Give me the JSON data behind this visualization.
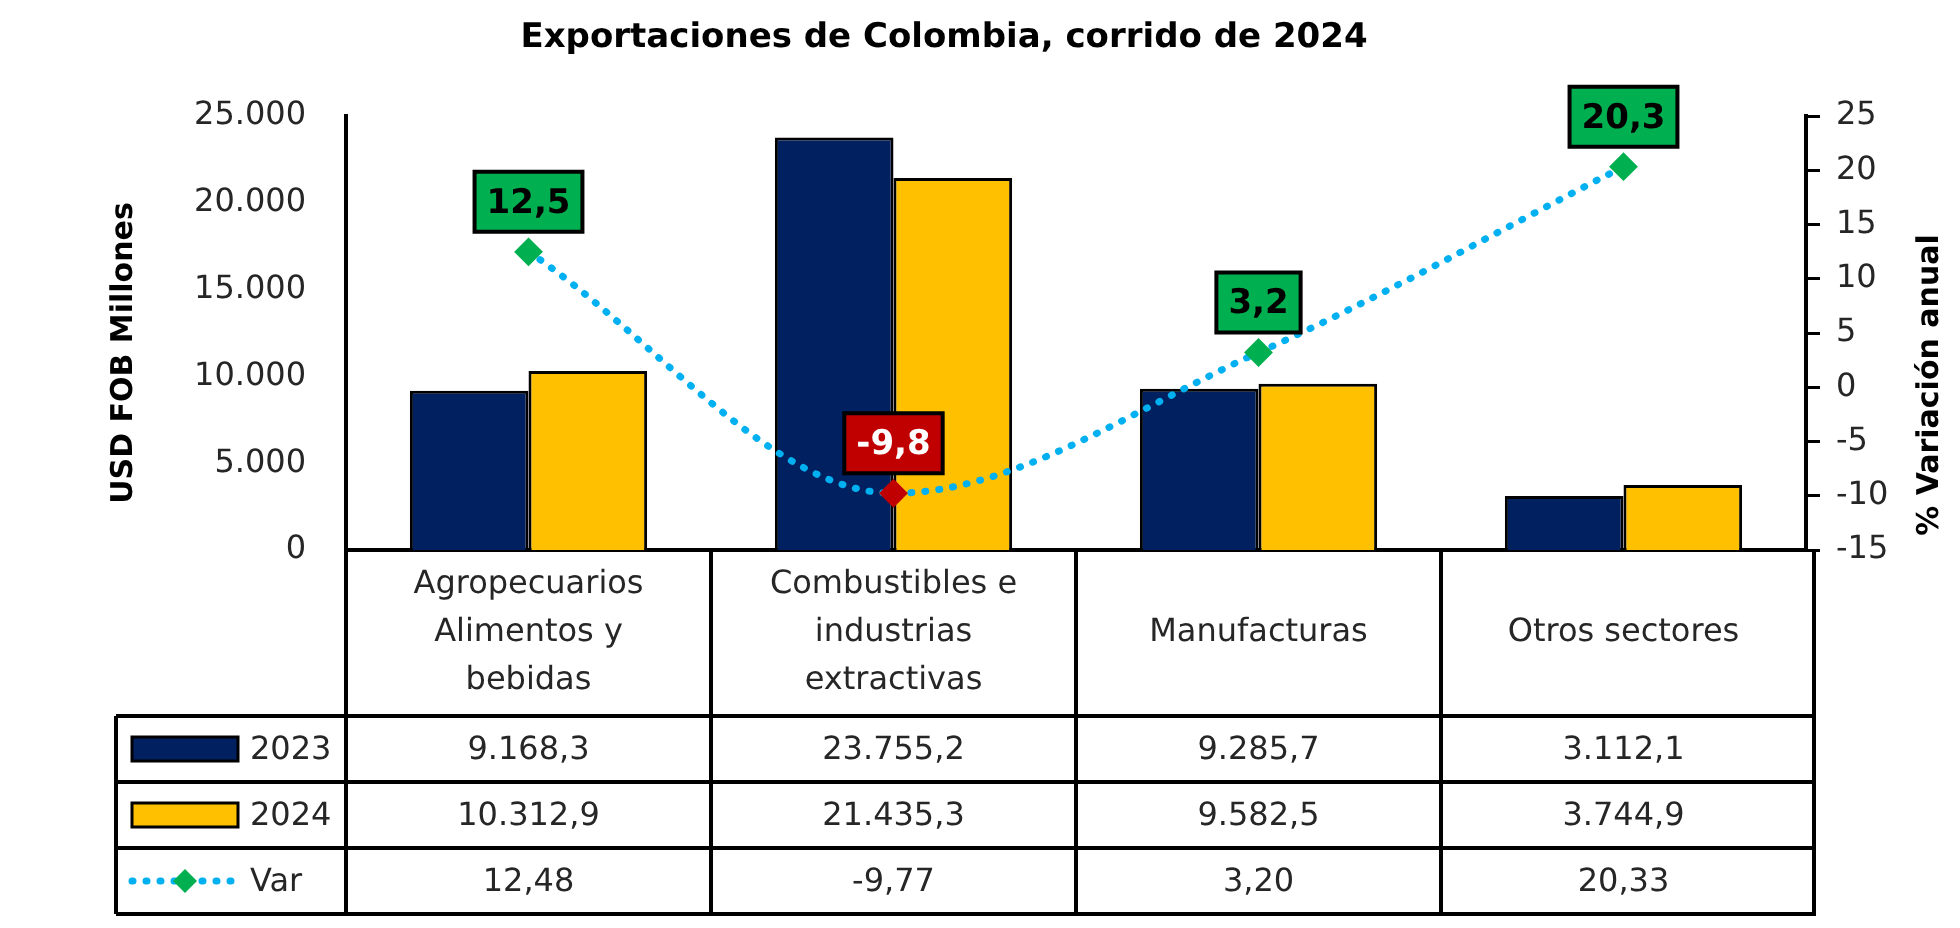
{
  "chart_data": {
    "type": "bar",
    "title": "Exportaciones de Colombia, corrido de 2024",
    "ylabel": "USD FOB Millones",
    "y2label": "% Variación anual",
    "categories": [
      "Agropecuarios Alimentos y bebidas",
      "Combustibles e industrias extractivas",
      "Manufacturas",
      "Otros sectores"
    ],
    "series": [
      {
        "name": "2023",
        "color": "#002060",
        "values": [
          9168.3,
          23755.2,
          9285.7,
          3112.1
        ],
        "value_labels": [
          "9.168,3",
          "23.755,2",
          "9.285,7",
          "3.112,1"
        ]
      },
      {
        "name": "2024",
        "color": "#ffc000",
        "values": [
          10312.9,
          21435.3,
          9582.5,
          3744.9
        ],
        "value_labels": [
          "10.312,9",
          "21.435,3",
          "9.582,5",
          "3.744,9"
        ]
      },
      {
        "name": "Var",
        "type": "line",
        "axis": "y2",
        "color": "#00b0f0",
        "colors": [
          "#00b050",
          "#c00000",
          "#00b050",
          "#00b050"
        ],
        "values": [
          12.48,
          -9.77,
          3.2,
          20.33
        ],
        "value_labels": [
          "12,48",
          "-9,77",
          "3,20",
          "20,33"
        ]
      }
    ],
    "annotations": [
      "12,5",
      "-9,8",
      "3,2",
      "20,3"
    ],
    "ylim": [
      0,
      25000
    ],
    "yticks": [
      0,
      {
        "value": 5000,
        "label": "5.000"
      },
      {
        "value": 10000,
        "label": "10.000"
      },
      {
        "value": 15000,
        "label": "15.000"
      },
      {
        "value": 20000,
        "label": "20.000"
      },
      {
        "value": 25000,
        "label": "25.000"
      }
    ],
    "y2lim": [
      -15,
      25
    ],
    "y2ticks": [
      -15,
      -10,
      -5,
      0,
      5,
      10,
      15,
      20,
      25
    ],
    "marker": "diamond",
    "line_style": "dotted",
    "legend": "bottom",
    "grid": false
  }
}
